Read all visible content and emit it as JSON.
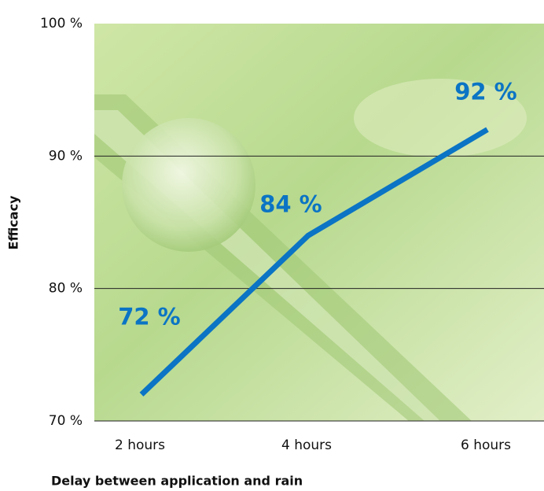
{
  "chart_data": {
    "type": "line",
    "x_label": "Delay between application and rain",
    "y_label": "Efficacy",
    "categories": [
      "2 hours",
      "4 hours",
      "6 hours"
    ],
    "series": [
      {
        "name": "Efficacy",
        "color": "#0b74c4",
        "values": [
          72,
          84,
          92
        ],
        "value_labels": [
          "72 %",
          "84 %",
          "92 %"
        ]
      }
    ],
    "ylim": [
      70,
      100
    ],
    "yticks": [
      {
        "value": 70,
        "label": "70 %"
      },
      {
        "value": 80,
        "label": "80 %"
      },
      {
        "value": 90,
        "label": "90 %"
      },
      {
        "value": 100,
        "label": "100 %"
      }
    ],
    "grid": true
  }
}
